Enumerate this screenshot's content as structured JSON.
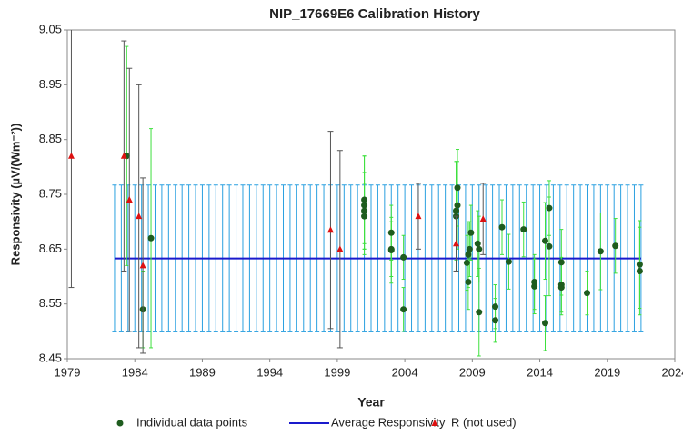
{
  "chart_data": {
    "type": "scatter",
    "title": "NIP_17669E6 Calibration History",
    "x_label": "Year",
    "y_label": "Responsivity (µV/(Wm⁻²))",
    "xlim": [
      1979,
      2024
    ],
    "xticks": [
      1979,
      1984,
      1989,
      1994,
      1999,
      2004,
      2009,
      2014,
      2019,
      2024
    ],
    "ylim": [
      8.45,
      9.05
    ],
    "yticks": [
      9.05,
      8.95,
      8.85,
      8.75,
      8.65,
      8.55,
      8.45
    ],
    "grid": false,
    "legend": "bottom",
    "series": [
      {
        "name": "Individual data points",
        "kind": "points",
        "color": "#1e5c1e",
        "error_color": "#3ee03e",
        "x": [
          1983.4,
          1984.6,
          1985.2,
          2001.0,
          2001.0,
          2001.0,
          2001.0,
          2003.0,
          2003.0,
          2003.0,
          2003.9,
          2003.9,
          2007.9,
          2007.9,
          2007.8,
          2007.8,
          2008.6,
          2008.7,
          2008.8,
          2008.9,
          2008.7,
          2009.5,
          2009.5,
          2009.4,
          2010.7,
          2010.7,
          2011.2,
          2011.7,
          2012.8,
          2013.6,
          2013.6,
          2014.4,
          2014.4,
          2014.7,
          2014.7,
          2015.6,
          2015.6,
          2015.6,
          2017.5,
          2018.5,
          2019.6,
          2021.4,
          2021.4
        ],
        "values": [
          8.82,
          8.54,
          8.67,
          8.74,
          8.73,
          8.72,
          8.71,
          8.68,
          8.65,
          8.648,
          8.54,
          8.635,
          8.762,
          8.73,
          8.72,
          8.71,
          8.625,
          8.64,
          8.65,
          8.68,
          8.59,
          8.65,
          8.535,
          8.66,
          8.545,
          8.52,
          8.69,
          8.627,
          8.686,
          8.59,
          8.582,
          8.665,
          8.515,
          8.725,
          8.655,
          8.626,
          8.585,
          8.58,
          8.57,
          8.646,
          8.656,
          8.622,
          8.61
        ],
        "errors": [
          0.2,
          0.07,
          0.2,
          0.08,
          0.09,
          0.07,
          0.06,
          0.05,
          0.05,
          0.06,
          0.04,
          0.04,
          0.07,
          0.08,
          0.09,
          0.1,
          0.05,
          0.06,
          0.05,
          0.05,
          0.05,
          0.06,
          0.08,
          0.06,
          0.04,
          0.04,
          0.05,
          0.05,
          0.05,
          0.05,
          0.05,
          0.07,
          0.05,
          0.05,
          0.09,
          0.06,
          0.05,
          0.05,
          0.04,
          0.07,
          0.05,
          0.08,
          0.08
        ]
      },
      {
        "name": "Average Responsivity",
        "kind": "line",
        "color": "#1a1acc",
        "error_color": "#2aa0e0",
        "x": [
          1982.5,
          1983,
          1983.5,
          1984,
          1984.5,
          1985,
          1985.5,
          1986,
          1986.5,
          1987,
          1987.5,
          1988,
          1988.5,
          1989,
          1989.5,
          1990,
          1990.5,
          1991,
          1991.5,
          1992,
          1992.5,
          1993,
          1993.5,
          1994,
          1994.5,
          1995,
          1995.5,
          1996,
          1996.5,
          1997,
          1997.5,
          1998,
          1998.5,
          1999,
          1999.5,
          2000,
          2000.5,
          2001,
          2001.5,
          2002,
          2002.5,
          2003,
          2003.5,
          2004,
          2004.5,
          2005,
          2005.5,
          2006,
          2006.5,
          2007,
          2007.5,
          2008,
          2008.5,
          2009,
          2009.5,
          2010,
          2010.5,
          2011,
          2011.5,
          2012,
          2012.5,
          2013,
          2013.5,
          2014,
          2014.5,
          2015,
          2015.5,
          2016,
          2016.5,
          2017,
          2017.5,
          2018,
          2018.5,
          2019,
          2019.5,
          2020,
          2020.5,
          2021,
          2021.5
        ],
        "values": [
          8.633,
          8.633,
          8.633,
          8.633,
          8.633,
          8.633,
          8.633,
          8.633,
          8.633,
          8.633,
          8.633,
          8.633,
          8.633,
          8.633,
          8.633,
          8.633,
          8.633,
          8.633,
          8.633,
          8.633,
          8.633,
          8.633,
          8.633,
          8.633,
          8.633,
          8.633,
          8.633,
          8.633,
          8.633,
          8.633,
          8.633,
          8.633,
          8.633,
          8.633,
          8.633,
          8.633,
          8.633,
          8.633,
          8.633,
          8.633,
          8.633,
          8.633,
          8.633,
          8.633,
          8.633,
          8.633,
          8.633,
          8.633,
          8.633,
          8.633,
          8.633,
          8.633,
          8.633,
          8.633,
          8.633,
          8.633,
          8.633,
          8.633,
          8.633,
          8.633,
          8.633,
          8.633,
          8.633,
          8.633,
          8.633,
          8.633,
          8.633,
          8.633,
          8.633,
          8.633,
          8.633,
          8.633,
          8.633,
          8.633,
          8.633,
          8.633,
          8.633,
          8.633,
          8.633
        ],
        "errors": [
          0.134,
          0.134,
          0.134,
          0.134,
          0.134,
          0.134,
          0.134,
          0.134,
          0.134,
          0.134,
          0.134,
          0.134,
          0.134,
          0.134,
          0.134,
          0.134,
          0.134,
          0.134,
          0.134,
          0.134,
          0.134,
          0.134,
          0.134,
          0.134,
          0.134,
          0.134,
          0.134,
          0.134,
          0.134,
          0.134,
          0.134,
          0.134,
          0.134,
          0.134,
          0.134,
          0.134,
          0.134,
          0.134,
          0.134,
          0.134,
          0.134,
          0.134,
          0.134,
          0.134,
          0.134,
          0.134,
          0.134,
          0.134,
          0.134,
          0.134,
          0.134,
          0.134,
          0.134,
          0.134,
          0.134,
          0.134,
          0.134,
          0.134,
          0.134,
          0.134,
          0.134,
          0.134,
          0.134,
          0.134,
          0.134,
          0.134,
          0.134,
          0.134,
          0.134,
          0.134,
          0.134,
          0.134,
          0.134,
          0.134,
          0.134,
          0.134,
          0.134,
          0.134,
          0.134
        ]
      },
      {
        "name": "R (not used)",
        "kind": "triangles",
        "color": "#dd1111",
        "error_color": "#555555",
        "x": [
          1979.3,
          1983.2,
          1983.6,
          1984.3,
          1984.6,
          1998.5,
          1999.2,
          2005.0,
          2007.8,
          2009.8
        ],
        "values": [
          8.82,
          8.82,
          8.74,
          8.71,
          8.62,
          8.685,
          8.65,
          8.71,
          8.66,
          8.705
        ],
        "errors": [
          0.24,
          0.21,
          0.24,
          0.24,
          0.16,
          0.18,
          0.18,
          0.06,
          0.05,
          0.065
        ]
      }
    ]
  }
}
